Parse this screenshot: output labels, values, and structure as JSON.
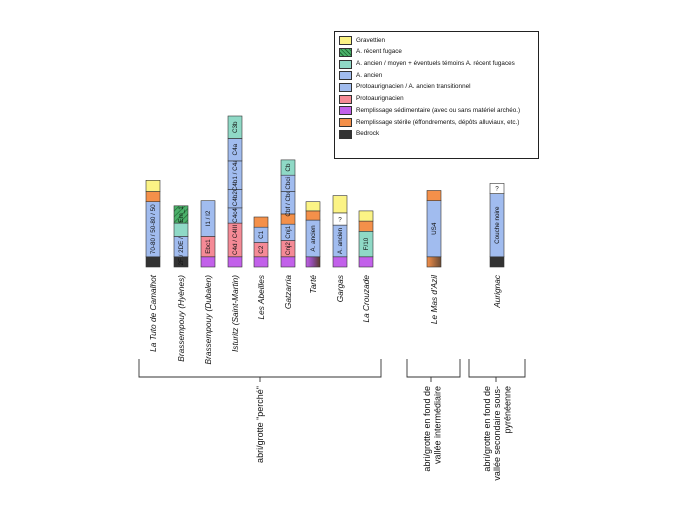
{
  "colors": {
    "gravettien": "#fbf385",
    "recent_fugace": "#4bb06a",
    "ancien_moyen": "#8fd9c6",
    "ancien": "#a1bcef",
    "proto_transitionnel": "#a1bcef",
    "protoaurignacien": "#f58a96",
    "remplissage_sedimentaire": "#c261ea",
    "remplissage_sterile": "#f4904a",
    "bedrock": "#333333"
  },
  "legend": [
    {
      "label": "Gravettien",
      "color": "#fbf385"
    },
    {
      "label": "A. récent fugace",
      "color": "#4bb06a",
      "hatched": true
    },
    {
      "label": "A. ancien / moyen + éventuels témoins A. récent fugaces",
      "color": "#8fd9c6"
    },
    {
      "label": "A. ancien",
      "color": "#a1bcef"
    },
    {
      "label": "Protoaurignacien / A. ancien transitionnel",
      "color": "#a1bcef"
    },
    {
      "label": "Protoaurignacien",
      "color": "#f58a96"
    },
    {
      "label": "Remplissage sédimentaire (avec ou sans matériel archéo.)",
      "color": "#c261ea"
    },
    {
      "label": "Remplissage stérile (éffondrements, dépôts alluviaux, etc.)",
      "color": "#f4904a"
    },
    {
      "label": "Bedrock",
      "color": "#333333"
    }
  ],
  "sites": [
    {
      "name": "La Tuto de Camalhot",
      "italic": true,
      "layers": [
        {
          "type": "bedrock",
          "units": 1
        },
        {
          "type": "ancien",
          "units": 5.4,
          "label": "70-80 / 50-80 / 50"
        },
        {
          "type": "remplissage_sterile",
          "units": 1
        },
        {
          "type": "gravettien",
          "units": 1.1
        }
      ]
    },
    {
      "name": "Brassempouy (Hyènes)",
      "italic": true,
      "layers": [
        {
          "type": "bedrock",
          "units": 1
        },
        {
          "type": "ancien",
          "units": 2,
          "label": "2F / 2DE / 2A"
        },
        {
          "type": "ancien_moyen",
          "units": 1.3
        },
        {
          "type": "recent_fugace",
          "units": 1.7,
          "label": "Em_1",
          "hatched": true
        }
      ]
    },
    {
      "name": "Brassempouy (Dubalen)",
      "italic": true,
      "layers": [
        {
          "type": "remplissage_sedimentaire",
          "units": 1
        },
        {
          "type": "protoaurignacien",
          "units": 2,
          "label": "Ebc1"
        },
        {
          "type": "ancien",
          "units": 3.5,
          "label": "I1 / I2"
        }
      ]
    },
    {
      "name": "Isturitz (Saint-Martin)",
      "italic": true,
      "layers": [
        {
          "type": "remplissage_sedimentaire",
          "units": 1
        },
        {
          "type": "protoaurignacien",
          "units": 3.3,
          "label": "C4d / C4III"
        },
        {
          "type": "ancien",
          "units": 1.5,
          "label": "C4c4"
        },
        {
          "type": "ancien",
          "units": 1.8,
          "label": "C4b2"
        },
        {
          "type": "ancien",
          "units": 2.8,
          "label": "C4b1 / C4a"
        },
        {
          "type": "ancien",
          "units": 2.2,
          "label": "C4a"
        },
        {
          "type": "ancien_moyen",
          "units": 2.2,
          "label": "C3b"
        }
      ]
    },
    {
      "name": "Les Abeilles",
      "italic": true,
      "layers": [
        {
          "type": "remplissage_sedimentaire",
          "units": 1
        },
        {
          "type": "protoaurignacien",
          "units": 1.4,
          "label": "C2"
        },
        {
          "type": "ancien",
          "units": 1.5,
          "label": "C1"
        },
        {
          "type": "remplissage_sterile",
          "units": 1
        }
      ]
    },
    {
      "name": "Gatzarria",
      "italic": true,
      "layers": [
        {
          "type": "remplissage_sedimentaire",
          "units": 1
        },
        {
          "type": "protoaurignacien",
          "units": 1.6,
          "label": "Cnj2"
        },
        {
          "type": "ancien",
          "units": 1.6,
          "label": "Cnj1"
        },
        {
          "type": "remplissage_sterile",
          "units": 1
        },
        {
          "type": "ancien",
          "units": 2.2,
          "label": "Cbf / Cbci"
        },
        {
          "type": "ancien",
          "units": 1.6,
          "label": "Cbci"
        },
        {
          "type": "ancien_moyen",
          "units": 1.5,
          "label": "Cb"
        }
      ]
    },
    {
      "name": "Tarté",
      "italic": true,
      "layers": [
        {
          "type": "remplissage_sedimentaire",
          "units": 1,
          "gradient": true
        },
        {
          "type": "ancien",
          "units": 3.6,
          "label": "A. ancien"
        },
        {
          "type": "remplissage_sterile",
          "units": 0.9
        },
        {
          "type": "gravettien",
          "units": 0.9
        }
      ]
    },
    {
      "name": "Gargas",
      "italic": true,
      "layers": [
        {
          "type": "remplissage_sedimentaire",
          "units": 1
        },
        {
          "type": "ancien",
          "units": 3.1,
          "label": "A. ancien"
        },
        {
          "type": "unknown",
          "units": 1.2,
          "label": "?"
        },
        {
          "type": "gravettien",
          "units": 1.7
        }
      ]
    },
    {
      "name": "La Crouzade",
      "italic": true,
      "layers": [
        {
          "type": "remplissage_sedimentaire",
          "units": 1
        },
        {
          "type": "ancien_moyen",
          "units": 2.5,
          "label": "F/10"
        },
        {
          "type": "remplissage_sterile",
          "units": 1
        },
        {
          "type": "gravettien",
          "units": 1
        }
      ]
    },
    {
      "name": "Le Mas d'Azil",
      "italic": true,
      "layers": [
        {
          "type": "remplissage_sterile",
          "units": 1,
          "gradient": true
        },
        {
          "type": "ancien",
          "units": 5.5,
          "label": "US4"
        },
        {
          "type": "remplissage_sterile",
          "units": 1
        }
      ]
    },
    {
      "name": "Aurignac",
      "italic": true,
      "layers": [
        {
          "type": "bedrock",
          "units": 1
        },
        {
          "type": "ancien",
          "units": 6.2,
          "label": "Couche noire"
        },
        {
          "type": "unknown",
          "units": 1,
          "label": "?"
        }
      ]
    }
  ],
  "groups": [
    {
      "label": "abri/grotte \"perché\""
    },
    {
      "label": "abri/grotte en fond de vallée intermédiaire"
    },
    {
      "label": "abri/grotte en fond de vallée secondaire sous-pyrénéenne"
    }
  ]
}
